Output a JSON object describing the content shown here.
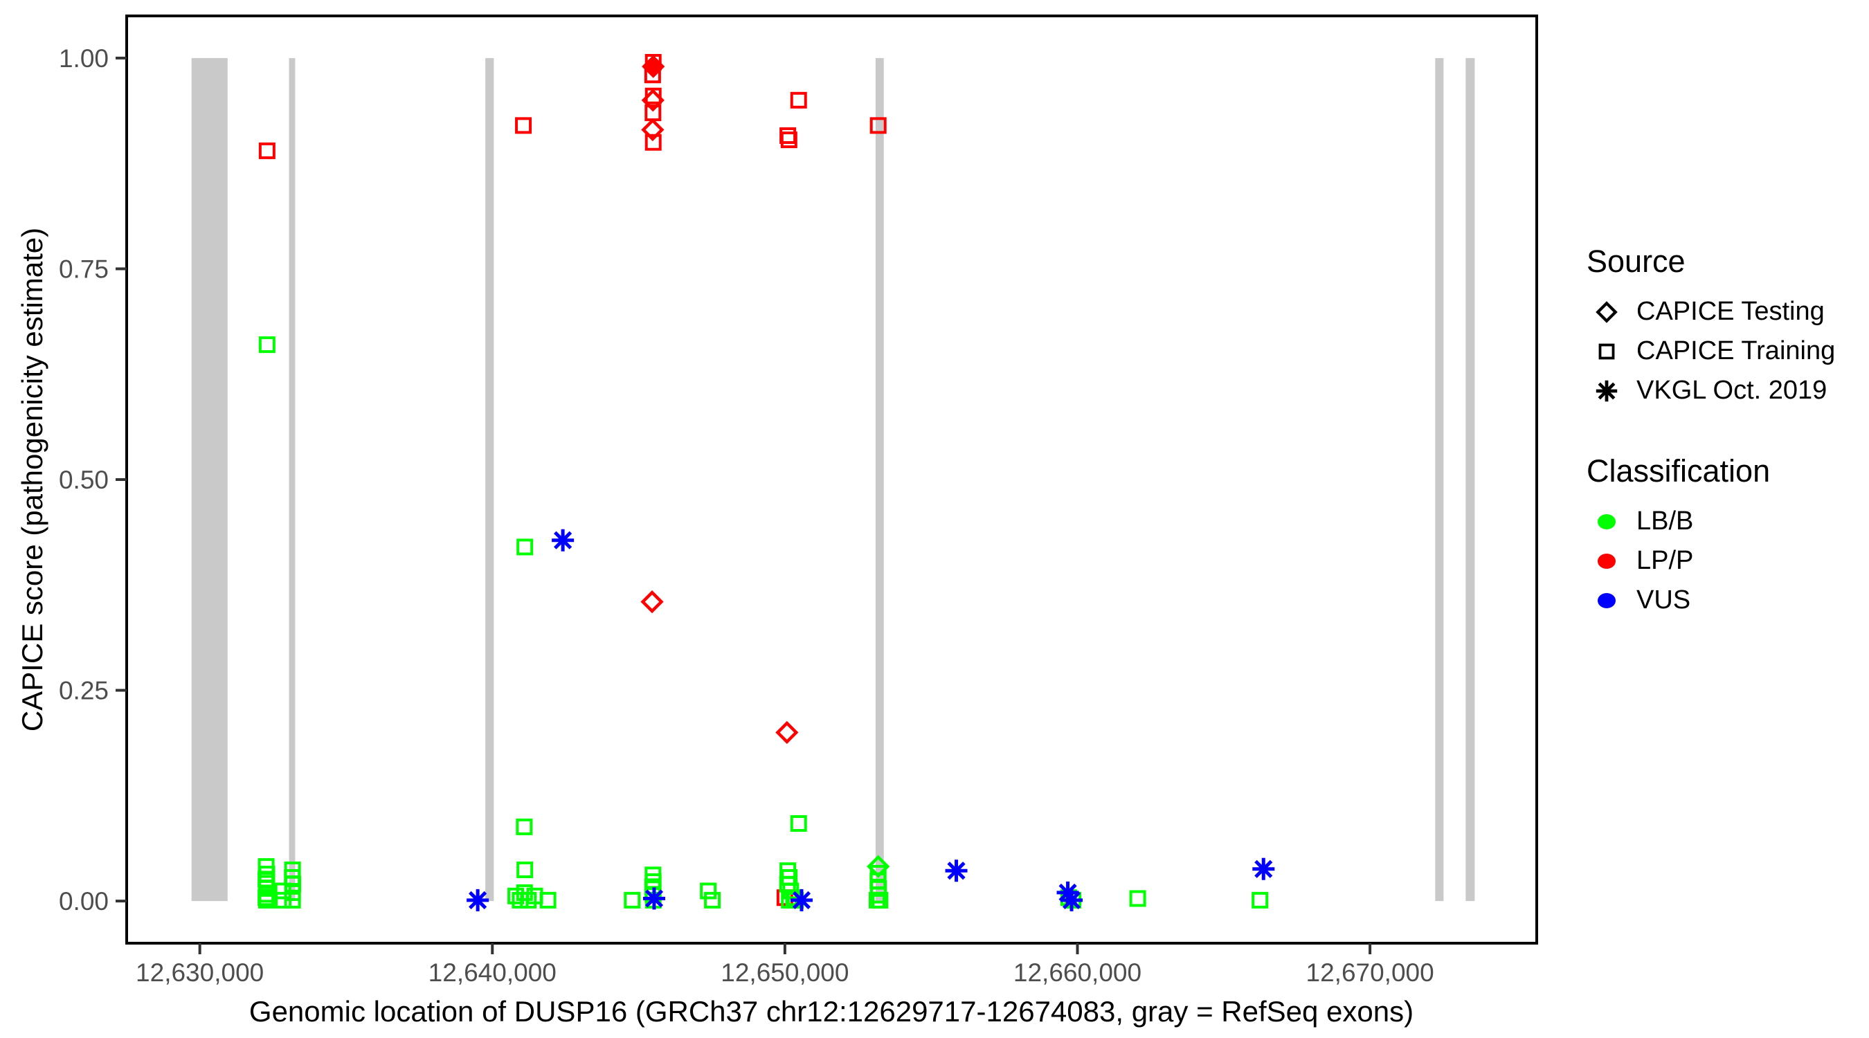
{
  "figure": {
    "background": "#ffffff"
  },
  "axes": {
    "x": {
      "domain": [
        12627500,
        12675700
      ],
      "ticks": [
        {
          "value": 12630000,
          "label": "12,630,000"
        },
        {
          "value": 12640000,
          "label": "12,640,000"
        },
        {
          "value": 12650000,
          "label": "12,650,000"
        },
        {
          "value": 12660000,
          "label": "12,660,000"
        },
        {
          "value": 12670000,
          "label": "12,670,000"
        }
      ]
    },
    "y": {
      "domain": [
        -0.05,
        1.05
      ],
      "ticks": [
        {
          "value": 0.0,
          "label": "0.00"
        },
        {
          "value": 0.25,
          "label": "0.25"
        },
        {
          "value": 0.5,
          "label": "0.50"
        },
        {
          "value": 0.75,
          "label": "0.75"
        },
        {
          "value": 1.0,
          "label": "1.00"
        }
      ]
    }
  },
  "legend": {
    "source": {
      "title": "Source",
      "items": [
        {
          "label": "CAPICE Testing",
          "shape": "diamond"
        },
        {
          "label": "CAPICE Training",
          "shape": "square"
        },
        {
          "label": "VKGL Oct. 2019",
          "shape": "asterisk"
        }
      ]
    },
    "classification": {
      "title": "Classification",
      "items": [
        {
          "label": "LB/B",
          "color": "#00FF00"
        },
        {
          "label": "LP/P",
          "color": "#FF0000"
        },
        {
          "label": "VUS",
          "color": "#0000FF"
        }
      ]
    }
  },
  "colors": {
    "LB/B": "#00FF00",
    "LP/P": "#FF0000",
    "VUS": "#0000FF",
    "exon": "#C9C9C9",
    "axis_line": "#000000",
    "tick_text": "#4D4D4D"
  },
  "chart_data": {
    "type": "scatter",
    "title": "",
    "xlabel": "Genomic location of DUSP16 (GRCh37 chr12:12629717-12674083, gray = RefSeq exons)",
    "ylabel": "CAPICE score (pathogenicity estimate)",
    "xlim": [
      12627500,
      12675700
    ],
    "ylim": [
      -0.05,
      1.05
    ],
    "grid": false,
    "legend_position": "right",
    "exons": [
      [
        12629717,
        12630950
      ],
      [
        12633050,
        12633260
      ],
      [
        12639760,
        12640050
      ],
      [
        12653100,
        12653380
      ],
      [
        12672230,
        12672515
      ],
      [
        12673270,
        12673580
      ]
    ],
    "points": [
      {
        "x": 12632300,
        "y": 0.89,
        "shape": "square",
        "cls": "LP/P"
      },
      {
        "x": 12641060,
        "y": 0.92,
        "shape": "square",
        "cls": "LP/P"
      },
      {
        "x": 12645500,
        "y": 0.995,
        "shape": "square",
        "cls": "LP/P"
      },
      {
        "x": 12645480,
        "y": 0.98,
        "shape": "square",
        "cls": "LP/P"
      },
      {
        "x": 12645500,
        "y": 0.955,
        "shape": "square",
        "cls": "LP/P"
      },
      {
        "x": 12645490,
        "y": 0.935,
        "shape": "square",
        "cls": "LP/P"
      },
      {
        "x": 12645500,
        "y": 0.9,
        "shape": "square",
        "cls": "LP/P"
      },
      {
        "x": 12645490,
        "y": 0.95,
        "shape": "diamond",
        "cls": "LP/P"
      },
      {
        "x": 12645480,
        "y": 0.915,
        "shape": "diamond",
        "cls": "LP/P"
      },
      {
        "x": 12645500,
        "y": 0.99,
        "shape": "diamond_filled",
        "cls": "LP/P"
      },
      {
        "x": 12645460,
        "y": 0.355,
        "shape": "diamond",
        "cls": "LP/P"
      },
      {
        "x": 12650470,
        "y": 0.95,
        "shape": "square",
        "cls": "LP/P"
      },
      {
        "x": 12650100,
        "y": 0.908,
        "shape": "square",
        "cls": "LP/P"
      },
      {
        "x": 12650140,
        "y": 0.903,
        "shape": "square",
        "cls": "LP/P"
      },
      {
        "x": 12653190,
        "y": 0.92,
        "shape": "square",
        "cls": "LP/P"
      },
      {
        "x": 12650070,
        "y": 0.2,
        "shape": "diamond",
        "cls": "LP/P"
      },
      {
        "x": 12650000,
        "y": 0.004,
        "shape": "square",
        "cls": "LP/P"
      },
      {
        "x": 12632300,
        "y": 0.66,
        "shape": "square",
        "cls": "LB/B"
      },
      {
        "x": 12632270,
        "y": 0.041,
        "shape": "square",
        "cls": "LB/B"
      },
      {
        "x": 12632290,
        "y": 0.032,
        "shape": "square",
        "cls": "LB/B"
      },
      {
        "x": 12632260,
        "y": 0.026,
        "shape": "square",
        "cls": "LB/B"
      },
      {
        "x": 12632280,
        "y": 0.021,
        "shape": "square",
        "cls": "LB/B"
      },
      {
        "x": 12632270,
        "y": 0.015,
        "shape": "square",
        "cls": "LB/B"
      },
      {
        "x": 12632290,
        "y": 0.008,
        "shape": "square",
        "cls": "LB/B"
      },
      {
        "x": 12632260,
        "y": 0.004,
        "shape": "square",
        "cls": "LB/B"
      },
      {
        "x": 12632280,
        "y": 0.001,
        "shape": "square",
        "cls": "LB/B"
      },
      {
        "x": 12632840,
        "y": 0.012,
        "shape": "square",
        "cls": "LB/B"
      },
      {
        "x": 12632850,
        "y": 0.001,
        "shape": "square",
        "cls": "LB/B"
      },
      {
        "x": 12633170,
        "y": 0.037,
        "shape": "square",
        "cls": "LB/B"
      },
      {
        "x": 12633160,
        "y": 0.028,
        "shape": "square",
        "cls": "LB/B"
      },
      {
        "x": 12633180,
        "y": 0.02,
        "shape": "square",
        "cls": "LB/B"
      },
      {
        "x": 12633170,
        "y": 0.01,
        "shape": "square",
        "cls": "LB/B"
      },
      {
        "x": 12633170,
        "y": 0.001,
        "shape": "square",
        "cls": "LB/B"
      },
      {
        "x": 12641110,
        "y": 0.42,
        "shape": "square",
        "cls": "LB/B"
      },
      {
        "x": 12641090,
        "y": 0.088,
        "shape": "square",
        "cls": "LB/B"
      },
      {
        "x": 12641110,
        "y": 0.037,
        "shape": "square",
        "cls": "LB/B"
      },
      {
        "x": 12640800,
        "y": 0.006,
        "shape": "square",
        "cls": "LB/B"
      },
      {
        "x": 12640950,
        "y": 0.001,
        "shape": "square",
        "cls": "LB/B"
      },
      {
        "x": 12641100,
        "y": 0.01,
        "shape": "square",
        "cls": "LB/B"
      },
      {
        "x": 12641230,
        "y": 0.001,
        "shape": "square",
        "cls": "LB/B"
      },
      {
        "x": 12641450,
        "y": 0.006,
        "shape": "square",
        "cls": "LB/B"
      },
      {
        "x": 12641900,
        "y": 0.001,
        "shape": "square",
        "cls": "LB/B"
      },
      {
        "x": 12644780,
        "y": 0.001,
        "shape": "square",
        "cls": "LB/B"
      },
      {
        "x": 12645490,
        "y": 0.031,
        "shape": "square",
        "cls": "LB/B"
      },
      {
        "x": 12645500,
        "y": 0.023,
        "shape": "square",
        "cls": "LB/B"
      },
      {
        "x": 12645480,
        "y": 0.017,
        "shape": "square",
        "cls": "LB/B"
      },
      {
        "x": 12645490,
        "y": 0.008,
        "shape": "square",
        "cls": "LB/B"
      },
      {
        "x": 12645500,
        "y": 0.001,
        "shape": "square",
        "cls": "LB/B"
      },
      {
        "x": 12647380,
        "y": 0.012,
        "shape": "square",
        "cls": "LB/B"
      },
      {
        "x": 12647520,
        "y": 0.001,
        "shape": "square",
        "cls": "LB/B"
      },
      {
        "x": 12650470,
        "y": 0.092,
        "shape": "square",
        "cls": "LB/B"
      },
      {
        "x": 12650100,
        "y": 0.036,
        "shape": "square",
        "cls": "LB/B"
      },
      {
        "x": 12650150,
        "y": 0.028,
        "shape": "square",
        "cls": "LB/B"
      },
      {
        "x": 12650090,
        "y": 0.02,
        "shape": "square",
        "cls": "LB/B"
      },
      {
        "x": 12650200,
        "y": 0.012,
        "shape": "square",
        "cls": "LB/B"
      },
      {
        "x": 12650300,
        "y": 0.004,
        "shape": "square",
        "cls": "LB/B"
      },
      {
        "x": 12650150,
        "y": 0.001,
        "shape": "square",
        "cls": "LB/B"
      },
      {
        "x": 12650360,
        "y": 0.001,
        "shape": "square",
        "cls": "LB/B"
      },
      {
        "x": 12653190,
        "y": 0.041,
        "shape": "diamond",
        "cls": "LB/B"
      },
      {
        "x": 12653190,
        "y": 0.033,
        "shape": "square",
        "cls": "LB/B"
      },
      {
        "x": 12653180,
        "y": 0.024,
        "shape": "square",
        "cls": "LB/B"
      },
      {
        "x": 12653200,
        "y": 0.015,
        "shape": "square",
        "cls": "LB/B"
      },
      {
        "x": 12653190,
        "y": 0.007,
        "shape": "square",
        "cls": "LB/B"
      },
      {
        "x": 12653150,
        "y": 0.001,
        "shape": "square",
        "cls": "LB/B"
      },
      {
        "x": 12653250,
        "y": 0.001,
        "shape": "square",
        "cls": "LB/B"
      },
      {
        "x": 12659700,
        "y": 0.004,
        "shape": "square",
        "cls": "LB/B"
      },
      {
        "x": 12659850,
        "y": 0.001,
        "shape": "square",
        "cls": "LB/B"
      },
      {
        "x": 12662060,
        "y": 0.003,
        "shape": "square",
        "cls": "LB/B"
      },
      {
        "x": 12666240,
        "y": 0.001,
        "shape": "square",
        "cls": "LB/B"
      },
      {
        "x": 12642410,
        "y": 0.428,
        "shape": "asterisk",
        "cls": "VUS"
      },
      {
        "x": 12639500,
        "y": 0.001,
        "shape": "asterisk",
        "cls": "VUS"
      },
      {
        "x": 12645530,
        "y": 0.003,
        "shape": "asterisk",
        "cls": "VUS"
      },
      {
        "x": 12650570,
        "y": 0.001,
        "shape": "asterisk",
        "cls": "VUS"
      },
      {
        "x": 12655860,
        "y": 0.036,
        "shape": "asterisk",
        "cls": "VUS"
      },
      {
        "x": 12659670,
        "y": 0.01,
        "shape": "asterisk",
        "cls": "VUS"
      },
      {
        "x": 12659800,
        "y": 0.001,
        "shape": "asterisk",
        "cls": "VUS"
      },
      {
        "x": 12666360,
        "y": 0.038,
        "shape": "asterisk",
        "cls": "VUS"
      }
    ]
  }
}
